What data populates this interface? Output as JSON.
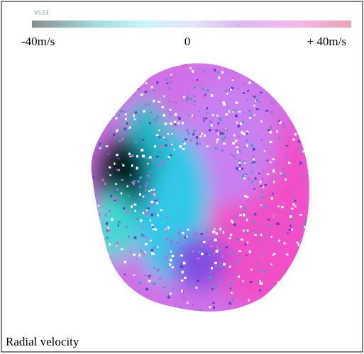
{
  "colorbar": {
    "tag": "V123",
    "labels": [
      "-40m/s",
      "0",
      "+ 40m/s"
    ]
  },
  "caption": "Radial velocity"
}
